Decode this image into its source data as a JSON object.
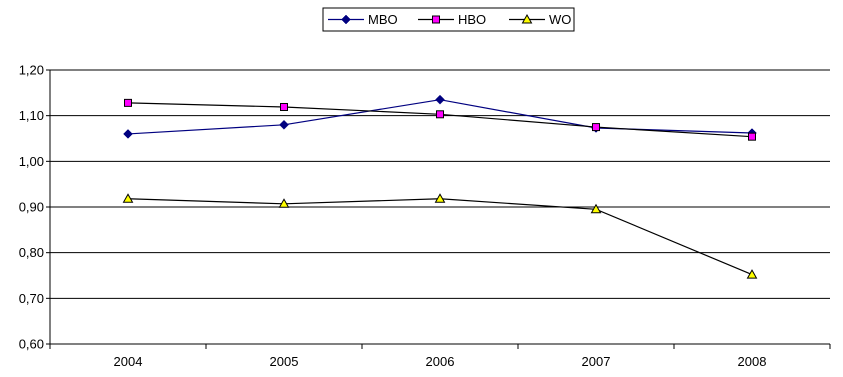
{
  "chart_data": {
    "type": "line",
    "title": "",
    "xlabel": "",
    "ylabel": "",
    "categories": [
      "2004",
      "2005",
      "2006",
      "2007",
      "2008"
    ],
    "ylim": [
      0.6,
      1.2
    ],
    "yticks": [
      "0,60",
      "0,70",
      "0,80",
      "0,90",
      "1,00",
      "1,10",
      "1,20"
    ],
    "grid": "horizontal",
    "legend_position": "top",
    "series": [
      {
        "name": "MBO",
        "values": [
          1.06,
          1.08,
          1.135,
          1.073,
          1.062
        ],
        "marker": "diamond",
        "line_color": "#000080",
        "marker_fill": "#000080"
      },
      {
        "name": "HBO",
        "values": [
          1.128,
          1.119,
          1.103,
          1.075,
          1.054
        ],
        "marker": "square",
        "line_color": "#000000",
        "marker_fill": "#ff00ff"
      },
      {
        "name": "WO",
        "values": [
          0.918,
          0.907,
          0.918,
          0.895,
          0.752
        ],
        "marker": "triangle",
        "line_color": "#000000",
        "marker_fill": "#ffff00"
      }
    ]
  }
}
